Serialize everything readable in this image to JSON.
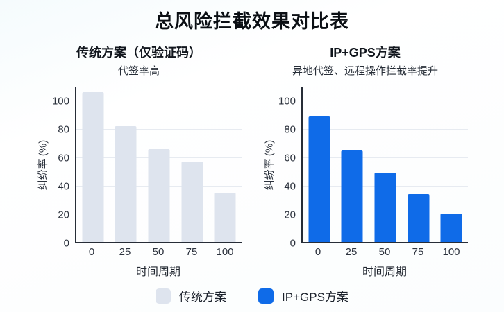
{
  "page": {
    "title": "总风险拦截效果对比表"
  },
  "panels": [
    {
      "heading": "传统方案（仅验证码）",
      "subtitle": "代签率高"
    },
    {
      "heading": "IP+GPS方案",
      "subtitle": "异地代签、远程操作拦截率提升"
    }
  ],
  "chart_data": [
    {
      "type": "bar",
      "title": "传统方案（仅验证码）",
      "subtitle": "代签率高",
      "categories": [
        "0",
        "25",
        "50",
        "75",
        "100"
      ],
      "values": [
        106,
        82,
        66,
        57,
        35
      ],
      "xlabel": "时间周期",
      "ylabel": "纠纷率 (%)",
      "yticks": [
        0,
        20,
        40,
        60,
        80,
        100
      ],
      "ylim": [
        0,
        110
      ],
      "grid": true,
      "legend_position": "none",
      "bar_color": "#dee4ee"
    },
    {
      "type": "bar",
      "title": "IP+GPS方案",
      "subtitle": "异地代签、远程操作拦截率提升",
      "categories": [
        "0",
        "25",
        "50",
        "75",
        "100"
      ],
      "values": [
        89,
        65,
        49,
        34,
        20
      ],
      "xlabel": "时间周期",
      "ylabel": "纠纷率 (%)",
      "yticks": [
        0,
        20,
        40,
        60,
        80,
        100
      ],
      "ylim": [
        0,
        110
      ],
      "grid": true,
      "legend_position": "none",
      "bar_color": "#0f6be8"
    }
  ],
  "legend": {
    "items": [
      {
        "label": "传统方案",
        "color": "#dee4ee"
      },
      {
        "label": "IP+GPS方案",
        "color": "#0f6be8"
      }
    ]
  },
  "colors": {
    "accent_blue": "#0f6be8",
    "muted_gray": "#dee4ee",
    "axis": "#272d37",
    "gridline": "#e7ebf1",
    "text_dark": "#0b0f14"
  }
}
